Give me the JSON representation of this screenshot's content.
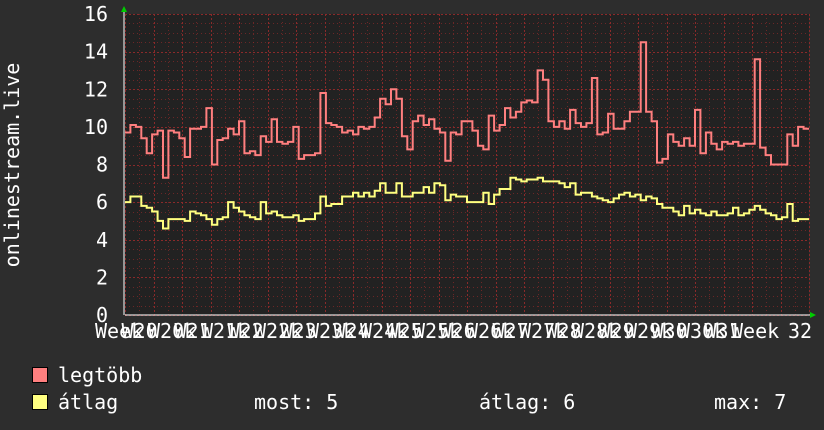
{
  "chart_data": {
    "type": "line",
    "ylabel": "onlinestream.live",
    "ylim": [
      0,
      16
    ],
    "yticks": [
      0,
      2,
      4,
      6,
      8,
      10,
      12,
      14,
      16
    ],
    "xtick_labels": [
      "Week",
      "W20",
      "W20k",
      "W21",
      "W21k",
      "W22",
      "W22k",
      "W23",
      "W23k",
      "W24",
      "W24k",
      "W25",
      "W25k",
      "W26",
      "W26k",
      "W27",
      "W27k",
      "W28",
      "W28k",
      "W29",
      "W29k",
      "W30",
      "W30k",
      "W31",
      "Week",
      "32"
    ],
    "grid": true,
    "colors": {
      "background": "#2d2d2d",
      "plot": "#222222",
      "grid": "#8a2a2a",
      "axis": "#ffffff",
      "arrow": "#00cc00"
    },
    "series": [
      {
        "name": "legtöbb",
        "color": "#ff7f7f",
        "values": [
          9.7,
          10.1,
          10.0,
          9.4,
          8.6,
          9.6,
          9.8,
          7.3,
          9.8,
          9.7,
          9.4,
          8.4,
          9.9,
          9.9,
          10.0,
          11.0,
          8.0,
          9.3,
          9.4,
          9.9,
          9.6,
          10.3,
          8.6,
          8.7,
          8.5,
          9.5,
          9.2,
          10.4,
          9.2,
          9.1,
          9.2,
          10.0,
          8.3,
          8.5,
          8.5,
          8.6,
          11.8,
          10.2,
          10.1,
          10.0,
          9.7,
          9.8,
          9.6,
          10.0,
          9.9,
          10.0,
          10.5,
          11.5,
          11.2,
          12.0,
          11.5,
          9.5,
          8.8,
          10.3,
          10.6,
          10.1,
          10.4,
          9.9,
          9.7,
          8.2,
          9.7,
          9.6,
          10.3,
          10.3,
          9.8,
          9.0,
          8.8,
          10.6,
          9.8,
          10.1,
          11.0,
          10.5,
          10.8,
          11.3,
          11.4,
          11.3,
          13.0,
          12.5,
          10.3,
          10.0,
          10.3,
          9.9,
          10.9,
          10.2,
          10.0,
          10.2,
          12.6,
          9.6,
          9.7,
          10.7,
          9.9,
          9.9,
          10.3,
          10.8,
          10.8,
          14.5,
          10.8,
          10.3,
          8.1,
          8.3,
          9.6,
          9.2,
          9.0,
          9.4,
          9.0,
          10.9,
          8.6,
          9.7,
          9.1,
          8.8,
          9.2,
          9.1,
          9.2,
          9.0,
          9.1,
          9.1,
          13.6,
          8.9,
          8.5,
          8.0,
          8.0,
          8.0,
          9.6,
          9.0,
          10.0,
          9.9
        ],
        "latest": "",
        "average": "",
        "maximum": ""
      },
      {
        "name": "átlag",
        "color": "#ffff80",
        "values": [
          6.0,
          6.3,
          6.3,
          5.8,
          5.7,
          5.5,
          5.0,
          4.6,
          5.1,
          5.1,
          5.1,
          5.0,
          5.5,
          5.4,
          5.3,
          5.1,
          4.8,
          5.1,
          5.2,
          6.0,
          5.7,
          5.5,
          5.3,
          5.2,
          5.1,
          6.0,
          5.4,
          5.5,
          5.3,
          5.2,
          5.2,
          5.3,
          5.0,
          5.1,
          5.1,
          5.4,
          6.3,
          5.8,
          5.9,
          5.9,
          6.3,
          6.3,
          6.5,
          6.3,
          6.5,
          6.3,
          6.6,
          7.0,
          6.5,
          6.5,
          7.0,
          6.3,
          6.3,
          6.5,
          6.5,
          6.8,
          6.5,
          7.0,
          6.9,
          6.1,
          6.4,
          6.3,
          6.3,
          6.0,
          6.0,
          6.0,
          6.5,
          5.9,
          6.4,
          6.7,
          6.7,
          7.3,
          7.2,
          7.1,
          7.2,
          7.2,
          7.3,
          7.1,
          7.1,
          7.1,
          7.0,
          6.8,
          7.0,
          6.4,
          6.5,
          6.5,
          6.3,
          6.2,
          6.1,
          6.0,
          6.2,
          6.4,
          6.5,
          6.3,
          6.4,
          6.1,
          6.3,
          6.2,
          5.9,
          5.7,
          5.7,
          5.5,
          5.3,
          5.8,
          5.4,
          5.6,
          5.4,
          5.3,
          5.5,
          5.3,
          5.3,
          5.4,
          5.7,
          5.3,
          5.4,
          5.6,
          5.8,
          5.6,
          5.4,
          5.3,
          5.1,
          5.2,
          5.9,
          5.0,
          5.1,
          5.1
        ],
        "latest": "5",
        "average": "6",
        "maximum": "7"
      }
    ]
  },
  "legend": {
    "items": [
      {
        "label": "legtöbb",
        "color": "#ff7f7f"
      },
      {
        "label": "átlag",
        "color": "#ffff80"
      }
    ],
    "stats": {
      "most_label": "most:",
      "most_value": "5",
      "atlag_label": "átlag:",
      "atlag_value": "6",
      "max_label": "max:",
      "max_value": "7"
    }
  }
}
